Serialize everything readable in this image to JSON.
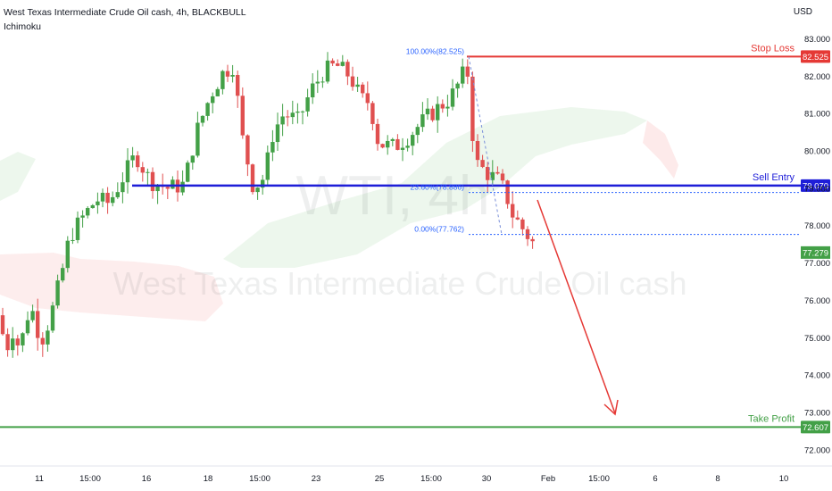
{
  "header": {
    "title": "West Texas Intermediate Crude Oil cash, 4h, BLACKBULL",
    "indicator": "Ichimoku",
    "currency": "USD"
  },
  "watermark": {
    "symbol": "WTI, 4h",
    "name": "West Texas Intermediate Crude Oil cash"
  },
  "chart_data": {
    "type": "candlestick",
    "y_axis": {
      "ticks": [
        "72.000",
        "73.000",
        "74.000",
        "75.000",
        "76.000",
        "77.000",
        "78.000",
        "79.000",
        "80.000",
        "81.000",
        "82.000",
        "83.000"
      ],
      "range": [
        71.5,
        83.5
      ]
    },
    "x_axis": {
      "ticks": [
        "11",
        "15:00",
        "16",
        "18",
        "15:00",
        "23",
        "25",
        "15:00",
        "30",
        "Feb",
        "15:00",
        "6",
        "8",
        "10"
      ]
    },
    "levels": [
      {
        "label": "Stop Loss",
        "value": "82.525",
        "color": "#e53935"
      },
      {
        "label": "Sell Entry",
        "value": "79.070",
        "color": "#1e1ed8"
      },
      {
        "label": "Take Profit",
        "value": "72.607",
        "color": "#43a047"
      }
    ],
    "fib": [
      {
        "label": "100.00%(82.525)",
        "value": 82.525
      },
      {
        "label": "23.60%(78.886)",
        "value": 78.886
      },
      {
        "label": "0.00%(77.762)",
        "value": 77.762
      }
    ],
    "last_price": {
      "value": "77.279",
      "color": "#43a047"
    },
    "colors": {
      "up": "#43a047",
      "down": "#e05050",
      "cloud_green": "#4caf50",
      "cloud_red": "#ef5350"
    }
  }
}
